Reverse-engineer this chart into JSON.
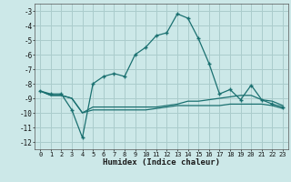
{
  "xlabel": "Humidex (Indice chaleur)",
  "background_color": "#cce8e8",
  "grid_color": "#aacccc",
  "line_color": "#1a7070",
  "xlim": [
    -0.5,
    23.5
  ],
  "ylim": [
    -12.5,
    -2.5
  ],
  "yticks": [
    -3,
    -4,
    -5,
    -6,
    -7,
    -8,
    -9,
    -10,
    -11,
    -12
  ],
  "xticks": [
    0,
    1,
    2,
    3,
    4,
    5,
    6,
    7,
    8,
    9,
    10,
    11,
    12,
    13,
    14,
    15,
    16,
    17,
    18,
    19,
    20,
    21,
    22,
    23
  ],
  "line1_x": [
    0,
    1,
    2,
    3,
    4,
    5,
    6,
    7,
    8,
    9,
    10,
    11,
    12,
    13,
    14,
    15,
    16,
    17,
    18,
    19,
    20,
    21,
    22,
    23
  ],
  "line1_y": [
    -8.5,
    -8.7,
    -8.7,
    -9.8,
    -11.7,
    -8.0,
    -7.5,
    -7.3,
    -7.5,
    -6.0,
    -5.5,
    -4.7,
    -4.5,
    -3.2,
    -3.5,
    -4.9,
    -6.6,
    -8.7,
    -8.4,
    -9.1,
    -8.1,
    -9.1,
    -9.4,
    -9.6
  ],
  "line2_x": [
    0,
    1,
    2,
    3,
    4,
    5,
    6,
    7,
    8,
    9,
    10,
    11,
    12,
    13,
    14,
    15,
    16,
    17,
    18,
    19,
    20,
    21,
    22,
    23
  ],
  "line2_y": [
    -8.5,
    -8.8,
    -8.8,
    -9.0,
    -10.0,
    -9.6,
    -9.6,
    -9.6,
    -9.6,
    -9.6,
    -9.6,
    -9.6,
    -9.5,
    -9.4,
    -9.2,
    -9.2,
    -9.1,
    -9.0,
    -8.9,
    -8.8,
    -8.8,
    -9.1,
    -9.2,
    -9.5
  ],
  "line3_x": [
    0,
    1,
    2,
    3,
    4,
    5,
    6,
    7,
    8,
    9,
    10,
    11,
    12,
    13,
    14,
    15,
    16,
    17,
    18,
    19,
    20,
    21,
    22,
    23
  ],
  "line3_y": [
    -8.5,
    -8.8,
    -8.8,
    -9.0,
    -10.0,
    -9.8,
    -9.8,
    -9.8,
    -9.8,
    -9.8,
    -9.8,
    -9.7,
    -9.6,
    -9.5,
    -9.5,
    -9.5,
    -9.5,
    -9.5,
    -9.4,
    -9.4,
    -9.4,
    -9.4,
    -9.5,
    -9.7
  ]
}
